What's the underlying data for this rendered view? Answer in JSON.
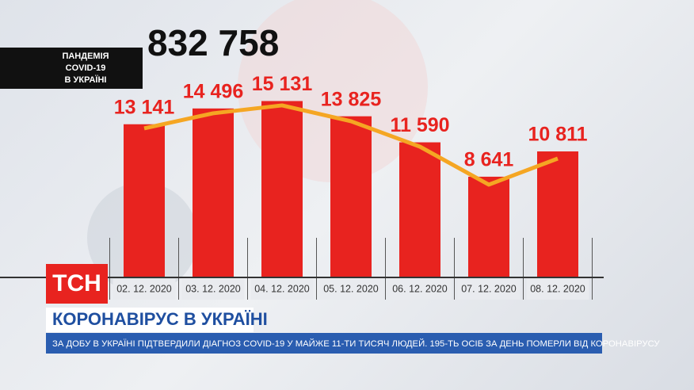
{
  "header": {
    "total": "832 758",
    "label_lines": [
      "ПАНДЕМІЯ",
      "COVID-19",
      "В УКРАЇНІ"
    ]
  },
  "logo": "ТСН",
  "banner": {
    "title": "КОРОНАВІРУС В УКРАЇНІ",
    "ticker": "ЗА ДОБУ В УКРАЇНІ ПІДТВЕРДИЛИ ДІАГНОЗ COVID-19 У МАЙЖЕ 11-ТИ ТИСЯЧ ЛЮДЕЙ. 195-ТЬ ОСІБ ЗА ДЕНЬ ПОМЕРЛИ ВІД КОРОНАВІРУСУ"
  },
  "chart_data": {
    "type": "bar",
    "categories": [
      "02. 12. 2020",
      "03. 12. 2020",
      "04. 12. 2020",
      "05. 12. 2020",
      "06. 12. 2020",
      "07. 12. 2020",
      "08. 12. 2020"
    ],
    "series": [
      {
        "type": "bar",
        "color": "#e8231f",
        "values": [
          13141,
          14496,
          15131,
          13825,
          11590,
          8641,
          10811
        ],
        "value_labels": [
          "13 141",
          "14 496",
          "15 131",
          "13 825",
          "11 590",
          "8 641",
          "10 811"
        ]
      },
      {
        "type": "line",
        "color": "#f5a623",
        "values": [
          12790,
          14080,
          14760,
          13400,
          11220,
          7960,
          10200
        ]
      }
    ],
    "ylim": [
      0,
      23800
    ]
  }
}
